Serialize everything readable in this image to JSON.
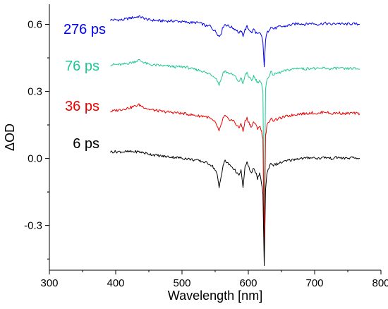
{
  "chart_data": {
    "type": "line",
    "xlabel": "Wavelength [nm]",
    "ylabel": "ΔOD",
    "xlim": [
      300,
      800
    ],
    "ylim": [
      -0.5,
      0.69
    ],
    "x_ticks": [
      300,
      400,
      500,
      600,
      700,
      800
    ],
    "y_ticks": [
      -0.3,
      0.0,
      0.3,
      0.6
    ],
    "x_tick_labels": [
      "300",
      "400",
      "500",
      "600",
      "700",
      "800"
    ],
    "y_tick_labels": [
      "-0.3",
      "0.0",
      "0.3",
      "0.6"
    ],
    "grid": false,
    "series": [
      {
        "name": "276 ps",
        "color": "#0000ee",
        "points": [
          [
            392,
            0.62
          ],
          [
            410,
            0.62
          ],
          [
            425,
            0.63
          ],
          [
            435,
            0.635
          ],
          [
            450,
            0.62
          ],
          [
            470,
            0.615
          ],
          [
            490,
            0.615
          ],
          [
            505,
            0.61
          ],
          [
            515,
            0.608
          ],
          [
            525,
            0.607
          ],
          [
            532,
            0.6
          ],
          [
            538,
            0.59
          ],
          [
            542,
            0.595
          ],
          [
            546,
            0.58
          ],
          [
            550,
            0.57
          ],
          [
            553,
            0.56
          ],
          [
            556,
            0.545
          ],
          [
            559,
            0.56
          ],
          [
            562,
            0.59
          ],
          [
            565,
            0.6
          ],
          [
            568,
            0.595
          ],
          [
            572,
            0.59
          ],
          [
            576,
            0.585
          ],
          [
            579,
            0.58
          ],
          [
            582,
            0.575
          ],
          [
            586,
            0.56
          ],
          [
            589,
            0.57
          ],
          [
            592,
            0.55
          ],
          [
            595,
            0.575
          ],
          [
            598,
            0.59
          ],
          [
            600,
            0.58
          ],
          [
            602,
            0.575
          ],
          [
            605,
            0.56
          ],
          [
            608,
            0.58
          ],
          [
            611,
            0.565
          ],
          [
            614,
            0.555
          ],
          [
            617,
            0.56
          ],
          [
            620,
            0.55
          ],
          [
            622,
            0.52
          ],
          [
            624,
            0.41
          ],
          [
            626,
            0.53
          ],
          [
            628,
            0.56
          ],
          [
            631,
            0.575
          ],
          [
            634,
            0.59
          ],
          [
            638,
            0.58
          ],
          [
            643,
            0.585
          ],
          [
            648,
            0.59
          ],
          [
            653,
            0.59
          ],
          [
            660,
            0.595
          ],
          [
            668,
            0.6
          ],
          [
            676,
            0.605
          ],
          [
            685,
            0.6
          ],
          [
            695,
            0.605
          ],
          [
            705,
            0.6
          ],
          [
            715,
            0.605
          ],
          [
            725,
            0.6
          ],
          [
            735,
            0.605
          ],
          [
            745,
            0.6
          ],
          [
            755,
            0.603
          ],
          [
            768,
            0.6
          ]
        ]
      },
      {
        "name": "76 ps",
        "color": "#1ec896",
        "points": [
          [
            392,
            0.42
          ],
          [
            410,
            0.42
          ],
          [
            425,
            0.43
          ],
          [
            435,
            0.44
          ],
          [
            450,
            0.42
          ],
          [
            470,
            0.415
          ],
          [
            490,
            0.41
          ],
          [
            505,
            0.41
          ],
          [
            515,
            0.4
          ],
          [
            525,
            0.395
          ],
          [
            532,
            0.39
          ],
          [
            538,
            0.38
          ],
          [
            542,
            0.38
          ],
          [
            546,
            0.37
          ],
          [
            550,
            0.365
          ],
          [
            553,
            0.35
          ],
          [
            556,
            0.33
          ],
          [
            559,
            0.355
          ],
          [
            562,
            0.385
          ],
          [
            565,
            0.39
          ],
          [
            568,
            0.385
          ],
          [
            572,
            0.38
          ],
          [
            576,
            0.375
          ],
          [
            579,
            0.37
          ],
          [
            582,
            0.36
          ],
          [
            586,
            0.34
          ],
          [
            589,
            0.365
          ],
          [
            592,
            0.33
          ],
          [
            595,
            0.37
          ],
          [
            598,
            0.385
          ],
          [
            600,
            0.37
          ],
          [
            602,
            0.36
          ],
          [
            605,
            0.345
          ],
          [
            608,
            0.37
          ],
          [
            611,
            0.355
          ],
          [
            614,
            0.34
          ],
          [
            617,
            0.35
          ],
          [
            620,
            0.33
          ],
          [
            622,
            0.3
          ],
          [
            624,
            -0.32
          ],
          [
            626,
            0.31
          ],
          [
            628,
            0.35
          ],
          [
            631,
            0.37
          ],
          [
            634,
            0.385
          ],
          [
            638,
            0.375
          ],
          [
            643,
            0.38
          ],
          [
            648,
            0.385
          ],
          [
            653,
            0.39
          ],
          [
            660,
            0.395
          ],
          [
            668,
            0.4
          ],
          [
            676,
            0.405
          ],
          [
            685,
            0.4
          ],
          [
            695,
            0.405
          ],
          [
            705,
            0.4
          ],
          [
            715,
            0.405
          ],
          [
            725,
            0.4
          ],
          [
            735,
            0.405
          ],
          [
            745,
            0.4
          ],
          [
            755,
            0.403
          ],
          [
            768,
            0.4
          ]
        ]
      },
      {
        "name": "36 ps",
        "color": "#ee0000",
        "points": [
          [
            392,
            0.21
          ],
          [
            410,
            0.22
          ],
          [
            425,
            0.23
          ],
          [
            435,
            0.24
          ],
          [
            450,
            0.22
          ],
          [
            470,
            0.21
          ],
          [
            490,
            0.205
          ],
          [
            505,
            0.2
          ],
          [
            515,
            0.195
          ],
          [
            525,
            0.19
          ],
          [
            532,
            0.19
          ],
          [
            538,
            0.185
          ],
          [
            542,
            0.18
          ],
          [
            546,
            0.17
          ],
          [
            550,
            0.16
          ],
          [
            553,
            0.145
          ],
          [
            556,
            0.12
          ],
          [
            559,
            0.15
          ],
          [
            562,
            0.18
          ],
          [
            565,
            0.19
          ],
          [
            568,
            0.18
          ],
          [
            572,
            0.175
          ],
          [
            576,
            0.17
          ],
          [
            579,
            0.165
          ],
          [
            582,
            0.15
          ],
          [
            586,
            0.135
          ],
          [
            589,
            0.16
          ],
          [
            592,
            0.12
          ],
          [
            595,
            0.165
          ],
          [
            598,
            0.18
          ],
          [
            600,
            0.165
          ],
          [
            602,
            0.155
          ],
          [
            605,
            0.14
          ],
          [
            608,
            0.165
          ],
          [
            611,
            0.15
          ],
          [
            614,
            0.135
          ],
          [
            617,
            0.145
          ],
          [
            620,
            0.12
          ],
          [
            622,
            0.09
          ],
          [
            624,
            -0.4
          ],
          [
            626,
            0.1
          ],
          [
            628,
            0.145
          ],
          [
            631,
            0.165
          ],
          [
            634,
            0.18
          ],
          [
            638,
            0.17
          ],
          [
            643,
            0.175
          ],
          [
            648,
            0.18
          ],
          [
            653,
            0.185
          ],
          [
            660,
            0.19
          ],
          [
            668,
            0.195
          ],
          [
            676,
            0.2
          ],
          [
            685,
            0.2
          ],
          [
            695,
            0.205
          ],
          [
            705,
            0.2
          ],
          [
            715,
            0.21
          ],
          [
            725,
            0.2
          ],
          [
            735,
            0.205
          ],
          [
            745,
            0.2
          ],
          [
            755,
            0.203
          ],
          [
            768,
            0.2
          ]
        ]
      },
      {
        "name": "6 ps",
        "color": "#000000",
        "points": [
          [
            392,
            0.03
          ],
          [
            410,
            0.03
          ],
          [
            425,
            0.03
          ],
          [
            435,
            0.03
          ],
          [
            450,
            0.02
          ],
          [
            470,
            0.01
          ],
          [
            490,
            0.005
          ],
          [
            505,
            0.0
          ],
          [
            515,
            -0.005
          ],
          [
            525,
            -0.01
          ],
          [
            532,
            -0.015
          ],
          [
            538,
            -0.02
          ],
          [
            542,
            -0.025
          ],
          [
            546,
            -0.035
          ],
          [
            550,
            -0.05
          ],
          [
            553,
            -0.07
          ],
          [
            556,
            -0.13
          ],
          [
            559,
            -0.08
          ],
          [
            562,
            -0.03
          ],
          [
            565,
            -0.01
          ],
          [
            568,
            -0.02
          ],
          [
            572,
            -0.03
          ],
          [
            576,
            -0.04
          ],
          [
            579,
            -0.05
          ],
          [
            582,
            -0.06
          ],
          [
            586,
            -0.08
          ],
          [
            589,
            -0.05
          ],
          [
            592,
            -0.13
          ],
          [
            595,
            -0.04
          ],
          [
            598,
            -0.02
          ],
          [
            600,
            -0.03
          ],
          [
            602,
            -0.05
          ],
          [
            605,
            -0.07
          ],
          [
            608,
            -0.04
          ],
          [
            611,
            -0.06
          ],
          [
            614,
            -0.09
          ],
          [
            617,
            -0.07
          ],
          [
            620,
            -0.11
          ],
          [
            622,
            -0.16
          ],
          [
            624,
            -0.48
          ],
          [
            626,
            -0.14
          ],
          [
            628,
            -0.07
          ],
          [
            631,
            -0.04
          ],
          [
            634,
            -0.02
          ],
          [
            638,
            -0.03
          ],
          [
            643,
            -0.025
          ],
          [
            648,
            -0.02
          ],
          [
            653,
            -0.015
          ],
          [
            660,
            -0.01
          ],
          [
            668,
            -0.005
          ],
          [
            676,
            0.0
          ],
          [
            685,
            0.0
          ],
          [
            695,
            0.005
          ],
          [
            705,
            0.0
          ],
          [
            715,
            0.005
          ],
          [
            725,
            0.0
          ],
          [
            735,
            0.005
          ],
          [
            745,
            0.0
          ],
          [
            755,
            0.003
          ],
          [
            768,
            0.0
          ]
        ]
      }
    ]
  }
}
